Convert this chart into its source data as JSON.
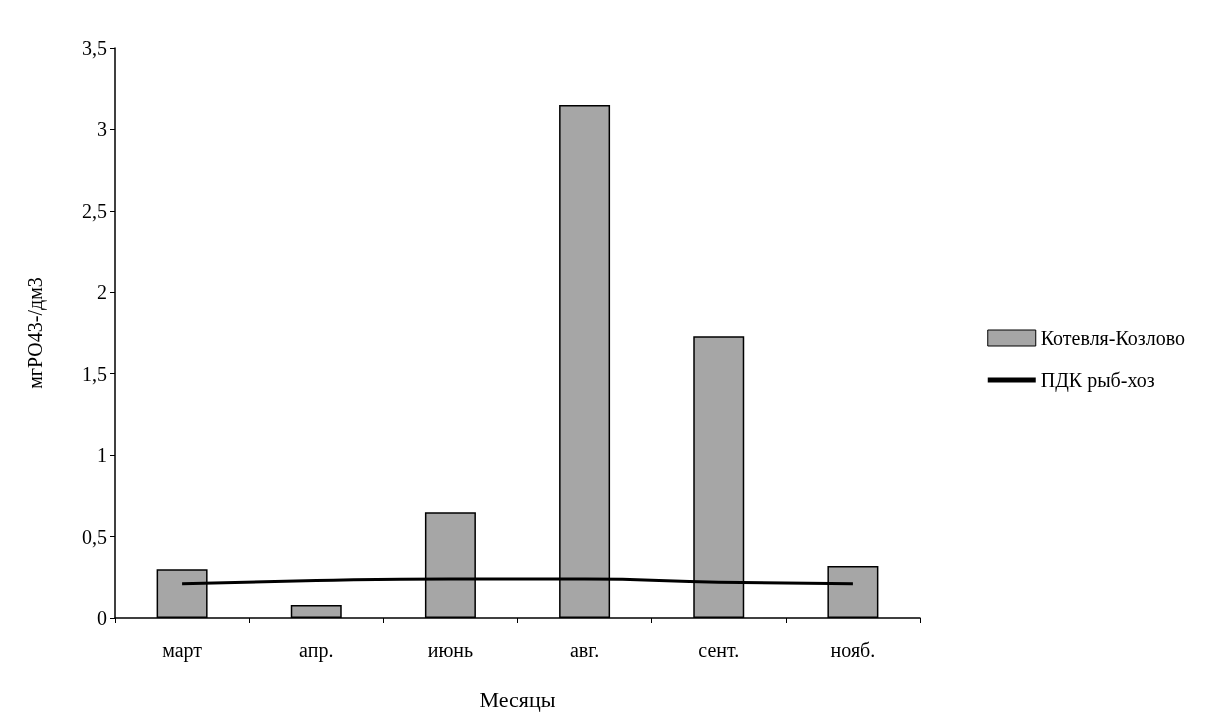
{
  "chart_data": {
    "type": "bar",
    "xlabel": "Месяцы",
    "ylabel": "мгРО43-/дм3",
    "categories": [
      "март",
      "апр.",
      "июнь",
      "авг.",
      "сент.",
      "нояб."
    ],
    "series": [
      {
        "name": "Котевля-Козлово",
        "color": "#a6a6a6",
        "values": [
          0.3,
          0.08,
          0.65,
          3.15,
          1.73,
          0.32
        ]
      },
      {
        "name": "ПДК рыб-хоз",
        "type": "line",
        "color": "#000000",
        "values": [
          0.21,
          0.23,
          0.24,
          0.24,
          0.22,
          0.21
        ]
      }
    ],
    "ylim": [
      0,
      3.5
    ],
    "yticks": [
      {
        "value": 0,
        "label": "0"
      },
      {
        "value": 0.5,
        "label": "0,5"
      },
      {
        "value": 1,
        "label": "1"
      },
      {
        "value": 1.5,
        "label": "1,5"
      },
      {
        "value": 2,
        "label": "2"
      },
      {
        "value": 2.5,
        "label": "2,5"
      },
      {
        "value": 3,
        "label": "3"
      },
      {
        "value": 3.5,
        "label": "3,5"
      }
    ],
    "grid": false,
    "legend": "right",
    "marker": "none",
    "line_style": "solid"
  }
}
